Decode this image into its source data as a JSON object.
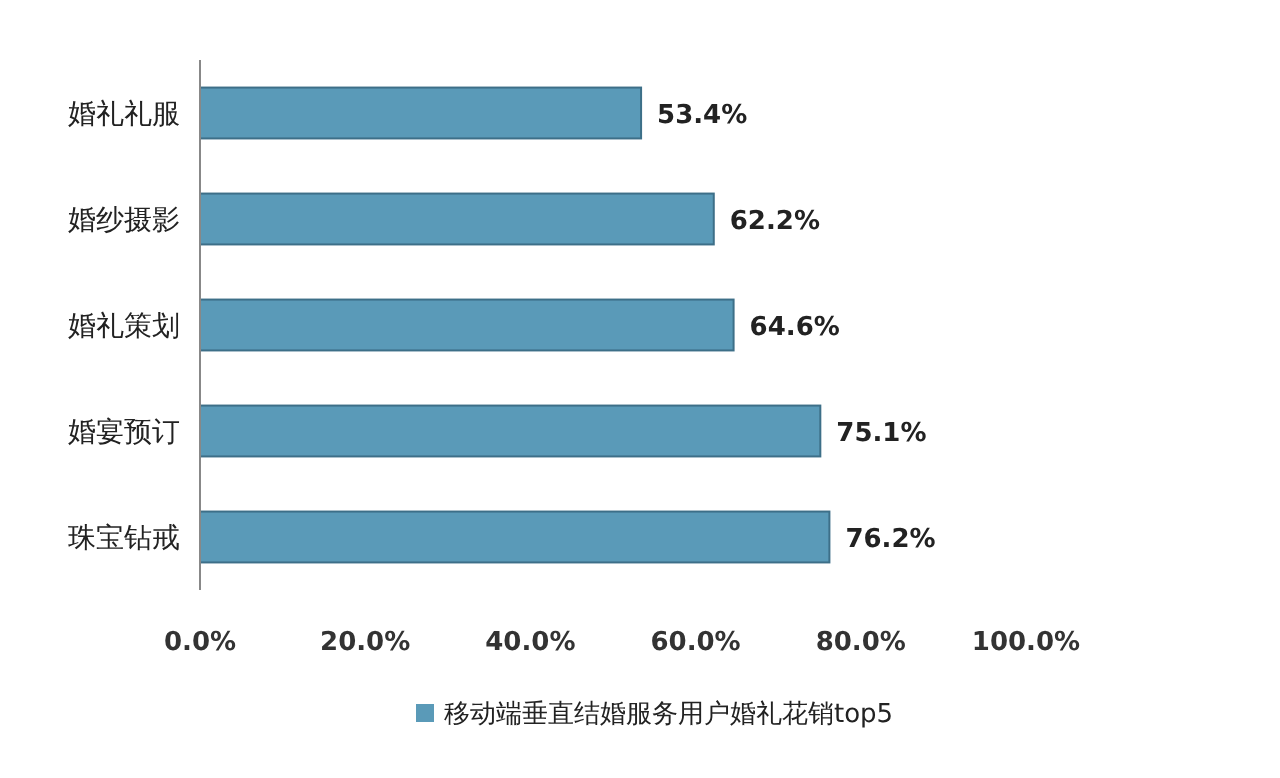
{
  "chart_data": {
    "type": "bar",
    "orientation": "horizontal",
    "categories": [
      "婚礼礼服",
      "婚纱摄影",
      "婚礼策划",
      "婚宴预订",
      "珠宝钻戒"
    ],
    "series": [
      {
        "name": "移动端垂直结婚服务用户婚礼花销top5",
        "color": "#5a9ab8",
        "values": [
          53.4,
          62.2,
          64.6,
          75.1,
          76.2
        ],
        "value_labels": [
          "53.4%",
          "62.2%",
          "64.6%",
          "75.1%",
          "76.2%"
        ]
      }
    ],
    "xlim": [
      0,
      100
    ],
    "xticks": [
      {
        "value": 0,
        "label": "0.0%"
      },
      {
        "value": 20,
        "label": "20.0%"
      },
      {
        "value": 40,
        "label": "40.0%"
      },
      {
        "value": 60,
        "label": "60.0%"
      },
      {
        "value": 80,
        "label": "80.0%"
      },
      {
        "value": 100,
        "label": "100.0%"
      }
    ],
    "grid": false,
    "legend": "bottom"
  }
}
